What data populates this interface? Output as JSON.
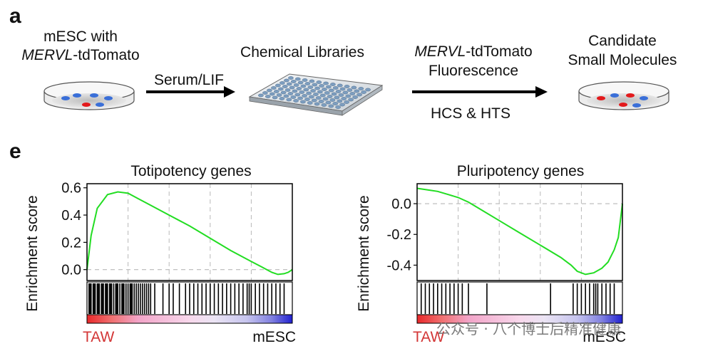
{
  "panel_a": {
    "letter": "a",
    "step1": {
      "line1": "mESC with",
      "line2_italic": "MERVL",
      "line2_rest": "-tdTomato"
    },
    "arrow1_label": "Serum/LIF",
    "step2_label": "Chemical Libraries",
    "arrow2_top_italic": "MERVL",
    "arrow2_top_rest": "-tdTomato",
    "arrow2_top_line2": "Fluorescence",
    "arrow2_bottom": "HCS & HTS",
    "step3": {
      "line1": "Candidate",
      "line2": "Small Molecules"
    },
    "colors": {
      "red_cell": "#e31a1c",
      "blue_cell": "#3a6fd8",
      "dish": "#d9d9d9"
    }
  },
  "panel_e": {
    "letter": "e",
    "watermark": "公众号 · 八个博士后精准健康"
  },
  "chart_data": [
    {
      "type": "line",
      "title": "Totipotency genes",
      "ylabel": "Enrichment score",
      "ylim": [
        -0.08,
        0.63
      ],
      "yticks": [
        "0.6",
        "0.4",
        "0.2",
        "0.0"
      ],
      "ytick_values": [
        0.6,
        0.4,
        0.2,
        0.0
      ],
      "x_left_label": "TAW",
      "x_right_label": "mESC",
      "series": [
        {
          "color": "#22dd22",
          "x": [
            0,
            0.02,
            0.05,
            0.1,
            0.15,
            0.2,
            0.25,
            0.3,
            0.4,
            0.5,
            0.6,
            0.7,
            0.8,
            0.85,
            0.9,
            0.93,
            0.96,
            0.98,
            1.0
          ],
          "y": [
            0.0,
            0.25,
            0.45,
            0.55,
            0.57,
            0.56,
            0.52,
            0.48,
            0.4,
            0.32,
            0.23,
            0.14,
            0.06,
            0.02,
            -0.02,
            -0.035,
            -0.03,
            -0.02,
            0.0
          ]
        }
      ],
      "hits": [
        0.01,
        0.015,
        0.02,
        0.03,
        0.035,
        0.04,
        0.05,
        0.055,
        0.06,
        0.07,
        0.075,
        0.08,
        0.09,
        0.095,
        0.1,
        0.11,
        0.115,
        0.12,
        0.13,
        0.14,
        0.145,
        0.15,
        0.16,
        0.17,
        0.175,
        0.18,
        0.19,
        0.2,
        0.21,
        0.215,
        0.22,
        0.23,
        0.24,
        0.25,
        0.26,
        0.27,
        0.28,
        0.29,
        0.3,
        0.31,
        0.33,
        0.37,
        0.4,
        0.42,
        0.45,
        0.48,
        0.5,
        0.52,
        0.54,
        0.56,
        0.58,
        0.6,
        0.62,
        0.64,
        0.66,
        0.68,
        0.7,
        0.72,
        0.74,
        0.76,
        0.78,
        0.79,
        0.8,
        0.82,
        0.84,
        0.86,
        0.88,
        0.9,
        0.92,
        0.94,
        0.96
      ]
    },
    {
      "type": "line",
      "title": "Pluripotency genes",
      "ylabel": "Enrichment score",
      "ylim": [
        -0.5,
        0.13
      ],
      "yticks": [
        "0.0",
        "-0.2",
        "-0.4"
      ],
      "ytick_values": [
        0.0,
        -0.2,
        -0.4
      ],
      "x_left_label": "TAW",
      "x_right_label": "mESC",
      "series": [
        {
          "color": "#22dd22",
          "x": [
            0,
            0.05,
            0.1,
            0.15,
            0.2,
            0.25,
            0.3,
            0.4,
            0.5,
            0.6,
            0.7,
            0.75,
            0.78,
            0.82,
            0.86,
            0.9,
            0.93,
            0.96,
            0.98,
            1.0
          ],
          "y": [
            0.1,
            0.09,
            0.08,
            0.06,
            0.04,
            0.01,
            -0.03,
            -0.11,
            -0.19,
            -0.27,
            -0.35,
            -0.4,
            -0.44,
            -0.46,
            -0.45,
            -0.42,
            -0.38,
            -0.3,
            -0.22,
            0.0
          ]
        }
      ],
      "hits": [
        0.02,
        0.04,
        0.06,
        0.08,
        0.1,
        0.12,
        0.14,
        0.16,
        0.18,
        0.2,
        0.22,
        0.25,
        0.34,
        0.65,
        0.76,
        0.78,
        0.8,
        0.82,
        0.84,
        0.86,
        0.87,
        0.88,
        0.9,
        0.92,
        0.94,
        0.96
      ]
    }
  ]
}
